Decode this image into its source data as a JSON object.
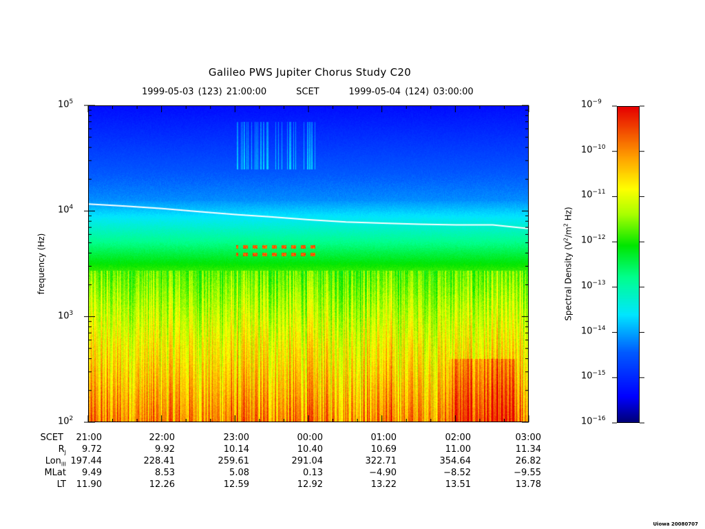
{
  "chart_data": {
    "type": "heatmap",
    "title": "Galileo PWS Jupiter Chorus Study  C20",
    "subtitle": {
      "start": "1999-05-03 (123) 21:00:00",
      "mid": "SCET",
      "end": "1999-05-04 (124) 03:00:00"
    },
    "ylabel": "frequency (Hz)",
    "yscale": "log",
    "ylim": [
      100,
      100000
    ],
    "yticks": [
      {
        "base": "10",
        "exp": "2"
      },
      {
        "base": "10",
        "exp": "3"
      },
      {
        "base": "10",
        "exp": "4"
      },
      {
        "base": "10",
        "exp": "5"
      }
    ],
    "x_ticks": [
      "21:00",
      "22:00",
      "23:00",
      "00:00",
      "01:00",
      "02:00",
      "03:00"
    ],
    "x_hours_range": [
      0,
      6
    ],
    "colorbar": {
      "label": "Spectral Density (V²/m² Hz)",
      "label_parts": {
        "pre": "Spectral Density (V",
        "sup1": "2",
        "mid": "/m",
        "sup2": "2",
        "post": " Hz)"
      },
      "scale": "log",
      "range": [
        1e-16,
        1e-09
      ],
      "ticks": [
        {
          "base": "10",
          "exp": "−9"
        },
        {
          "base": "10",
          "exp": "−10"
        },
        {
          "base": "10",
          "exp": "−11"
        },
        {
          "base": "10",
          "exp": "−12"
        },
        {
          "base": "10",
          "exp": "−13"
        },
        {
          "base": "10",
          "exp": "−14"
        },
        {
          "base": "10",
          "exp": "−15"
        },
        {
          "base": "10",
          "exp": "−16"
        }
      ],
      "colormap": "rainbow"
    },
    "white_line": {
      "name": "electron cyclotron frequency trace",
      "x_hours": [
        0,
        0.5,
        1,
        1.5,
        2,
        2.5,
        3,
        3.5,
        4,
        4.5,
        5,
        5.5,
        6
      ],
      "freq_hz": [
        11800,
        11300,
        10700,
        10000,
        9400,
        8900,
        8400,
        8000,
        7800,
        7600,
        7500,
        7500,
        6900
      ]
    },
    "features": [
      {
        "label": "chorus bands",
        "x_hours": [
          2.0,
          3.1
        ],
        "freq_hz": [
          3800,
          4900
        ]
      }
    ]
  },
  "ephemeris": {
    "rows": [
      {
        "label": "SCET",
        "sub": "",
        "values": [
          "21:00",
          "22:00",
          "23:00",
          "00:00",
          "01:00",
          "02:00",
          "03:00"
        ]
      },
      {
        "label": "R",
        "sub": "J",
        "values": [
          "9.72",
          "9.92",
          "10.14",
          "10.40",
          "10.69",
          "11.00",
          "11.34"
        ]
      },
      {
        "label": "Lon",
        "sub": "III",
        "values": [
          "197.44",
          "228.41",
          "259.61",
          "291.04",
          "322.71",
          "354.64",
          "26.82"
        ]
      },
      {
        "label": "MLat",
        "sub": "",
        "values": [
          "9.49",
          "8.53",
          "5.08",
          "0.13",
          "−4.90",
          "−8.52",
          "−9.55"
        ]
      },
      {
        "label": "LT",
        "sub": "",
        "values": [
          "11.90",
          "12.26",
          "12.59",
          "12.92",
          "13.22",
          "13.51",
          "13.78"
        ]
      }
    ]
  },
  "footer": "Uiowa 20080707"
}
